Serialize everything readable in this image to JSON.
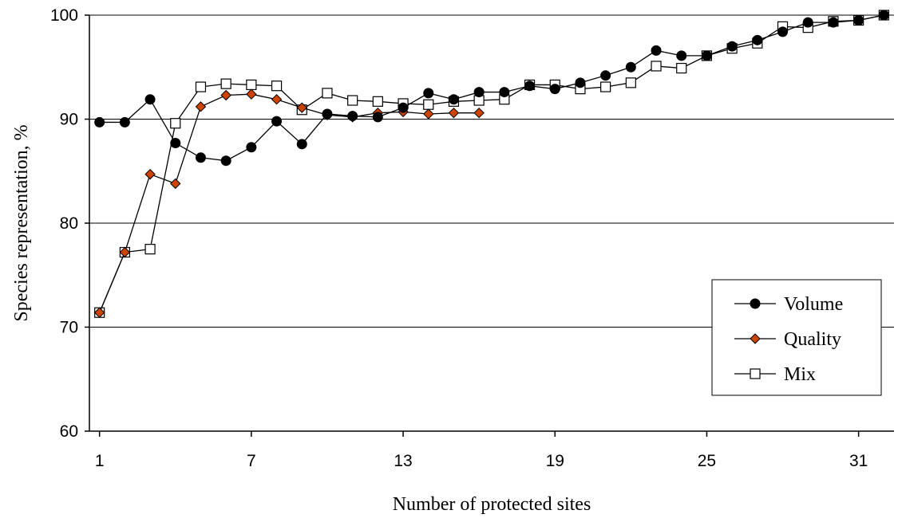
{
  "chart_data": {
    "type": "line",
    "title": "",
    "xlabel": "Number of protected sites",
    "ylabel": "Species representation, %",
    "ylim": [
      60,
      100
    ],
    "xlim": [
      0.6,
      32.4
    ],
    "yticks": [
      60,
      70,
      80,
      90,
      100
    ],
    "xticks": [
      1,
      7,
      13,
      19,
      25,
      31
    ],
    "grid": "horizontal",
    "legend_position": "lower-right",
    "series": [
      {
        "name": "Volume",
        "marker": "filled-circle",
        "color": "#000000",
        "x": [
          1,
          2,
          3,
          4,
          5,
          6,
          7,
          8,
          9,
          10,
          11,
          12,
          13,
          14,
          15,
          16,
          17,
          18,
          19,
          20,
          21,
          22,
          23,
          24,
          25,
          26,
          27,
          28,
          29,
          30,
          31,
          32
        ],
        "values": [
          89.7,
          89.7,
          91.9,
          87.7,
          86.3,
          86.0,
          87.3,
          89.8,
          87.6,
          90.5,
          90.3,
          90.2,
          91.1,
          92.5,
          91.9,
          92.6,
          92.6,
          93.2,
          92.9,
          93.5,
          94.2,
          95.0,
          96.6,
          96.1,
          96.1,
          97.0,
          97.6,
          98.4,
          99.3,
          99.3,
          99.5,
          100.0
        ]
      },
      {
        "name": "Quality",
        "marker": "diamond",
        "color": "#cc4400",
        "x": [
          1,
          2,
          3,
          4,
          5,
          6,
          7,
          8,
          9,
          10,
          11,
          12,
          13,
          14,
          15,
          16
        ],
        "values": [
          71.4,
          77.2,
          84.7,
          83.8,
          91.2,
          92.3,
          92.4,
          91.9,
          91.1,
          90.4,
          90.2,
          90.6,
          90.7,
          90.5,
          90.6,
          90.6
        ]
      },
      {
        "name": "Mix",
        "marker": "open-square",
        "color": "#000000",
        "x": [
          1,
          2,
          3,
          4,
          5,
          6,
          7,
          8,
          9,
          10,
          11,
          12,
          13,
          14,
          15,
          16,
          17,
          18,
          19,
          20,
          21,
          22,
          23,
          24,
          25,
          26,
          27,
          28,
          29,
          30,
          31,
          32
        ],
        "values": [
          71.4,
          77.2,
          77.5,
          89.6,
          93.1,
          93.4,
          93.3,
          93.2,
          90.9,
          92.5,
          91.8,
          91.7,
          91.5,
          91.4,
          91.7,
          91.8,
          91.9,
          93.3,
          93.3,
          92.9,
          93.1,
          93.5,
          95.1,
          94.9,
          96.1,
          96.8,
          97.3,
          98.9,
          98.8,
          99.4,
          99.5,
          100.0
        ]
      }
    ]
  }
}
